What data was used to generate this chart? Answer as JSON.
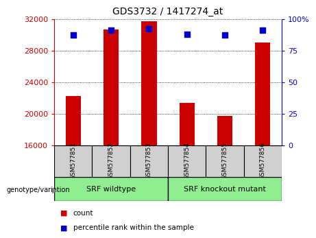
{
  "title": "GDS3732 / 1417274_at",
  "samples": [
    "GSM577851",
    "GSM577852",
    "GSM577853",
    "GSM577854",
    "GSM577855",
    "GSM577856"
  ],
  "counts": [
    22200,
    30700,
    31700,
    21400,
    19700,
    29000
  ],
  "percentile_ranks": [
    87,
    91,
    92,
    88,
    87,
    91
  ],
  "y_min": 16000,
  "y_max": 32000,
  "y_ticks": [
    16000,
    20000,
    24000,
    28000,
    32000
  ],
  "right_y_ticks": [
    0,
    25,
    50,
    75,
    100
  ],
  "bar_color": "#CC0000",
  "dot_color": "#0000CC",
  "left_tick_color": "#CC0000",
  "right_tick_color": "#0000CC",
  "grid_color": "#000000",
  "sample_bg_color": "#D0D0D0",
  "group_color": "#90EE90",
  "plot_bg": "#FFFFFF",
  "genotype_label": "genotype/variation",
  "bar_width": 0.4,
  "dot_size": 40,
  "legend_items": [
    "count",
    "percentile rank within the sample"
  ],
  "groups": [
    {
      "label": "SRF wildtype",
      "start": 0,
      "end": 2
    },
    {
      "label": "SRF knockout mutant",
      "start": 3,
      "end": 5
    }
  ]
}
